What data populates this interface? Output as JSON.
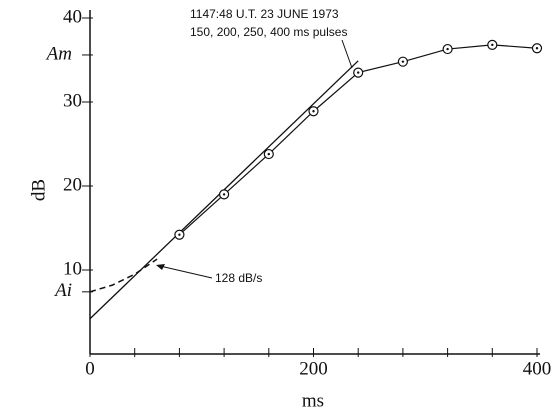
{
  "chart_data": {
    "type": "line",
    "annotations": [
      "1147:48 U.T. 23 JUNE 1973",
      "150, 200, 250, 400 ms pulses"
    ],
    "x_label": "ms",
    "y_label": "dB",
    "x": [
      80,
      120,
      160,
      200,
      240,
      280,
      320,
      360,
      400
    ],
    "values": [
      14.2,
      19.0,
      23.8,
      28.9,
      33.5,
      34.8,
      36.3,
      36.8,
      36.4
    ],
    "fit_line": {
      "x": [
        0,
        240
      ],
      "values": [
        4.2,
        34.9
      ],
      "label": "128 dB/s"
    },
    "dashed_curve": {
      "x": [
        0,
        20,
        40,
        60
      ],
      "values": [
        7.4,
        8.2,
        9.5,
        11.3
      ]
    },
    "xlim": [
      0,
      400
    ],
    "ylim": [
      0,
      40
    ],
    "xticks": [
      0,
      200,
      400
    ],
    "xminorticks": [
      40,
      80,
      120,
      160,
      240,
      280,
      320,
      360
    ],
    "yticks": [
      10,
      20,
      30,
      40,
      {
        "value": 35.6,
        "label": "Am"
      },
      {
        "value": 7.4,
        "label": "Ai"
      }
    ],
    "color": "#111111"
  }
}
